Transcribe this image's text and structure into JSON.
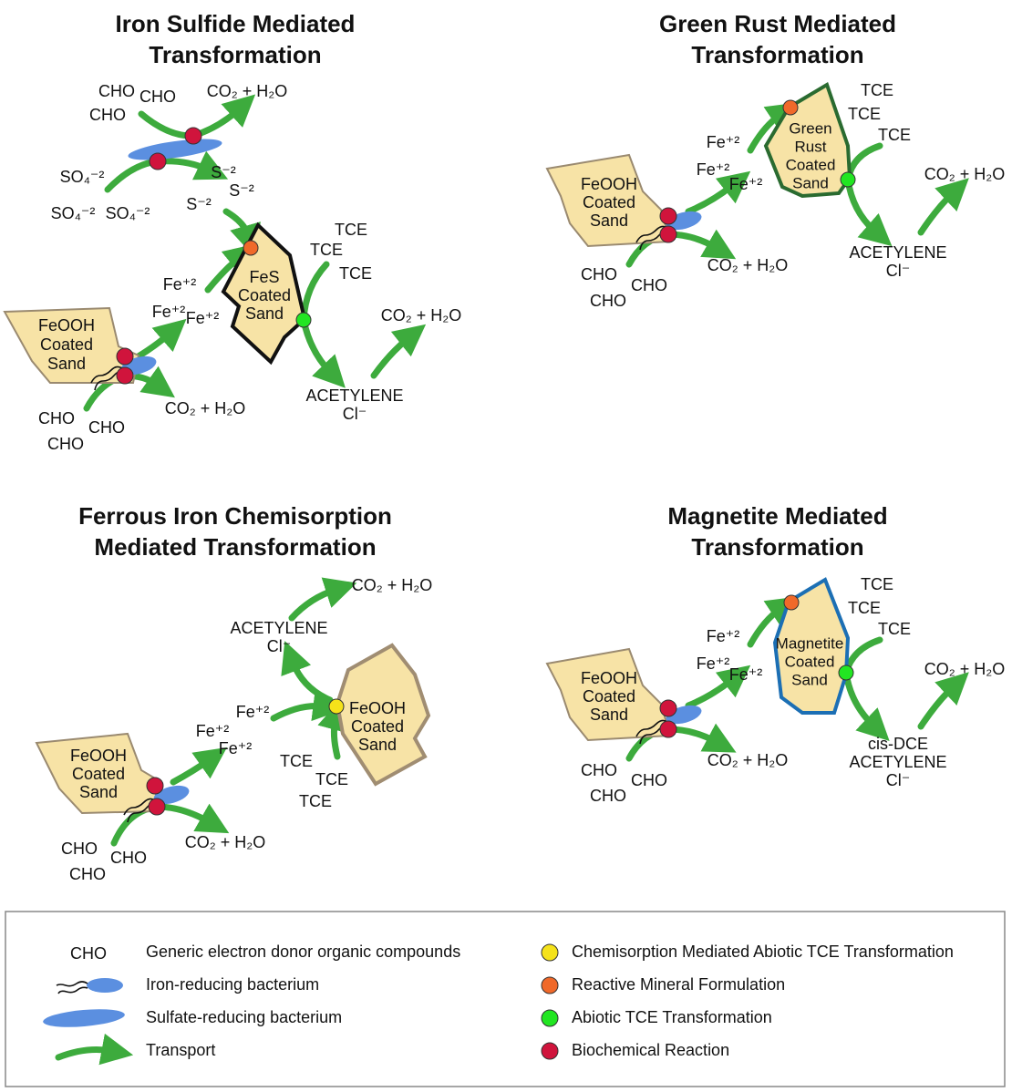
{
  "panels": [
    {
      "title": [
        "Iron Sulfide Mediated",
        "Transformation"
      ],
      "top_donors": [
        "CHO",
        "CHO",
        "CHO"
      ],
      "top_products": "CO₂ + H₂O",
      "sulfates": [
        "SO₄⁻²",
        "SO₄⁻²",
        "SO₄⁻²"
      ],
      "sulfides": [
        "S⁻²",
        "S⁻²",
        "S⁻²"
      ],
      "source": [
        "FeOOH",
        "Coated",
        "Sand"
      ],
      "iron": [
        "Fe⁺²",
        "Fe⁺²",
        "Fe⁺²"
      ],
      "mineral": [
        "FeS",
        "Coated",
        "Sand"
      ],
      "tce": [
        "TCE",
        "TCE",
        "TCE"
      ],
      "end_products": [
        "ACETYLENE",
        "Cl⁻"
      ],
      "final_products": "CO₂ + H₂O",
      "donors": [
        "CHO",
        "CHO",
        "CHO"
      ],
      "bio_products": "CO₂ + H₂O"
    },
    {
      "title": [
        "Green Rust Mediated",
        "Transformation"
      ],
      "source": [
        "FeOOH",
        "Coated",
        "Sand"
      ],
      "iron": [
        "Fe⁺²",
        "Fe⁺²",
        "Fe⁺²"
      ],
      "mineral": [
        "Green",
        "Rust",
        "Coated",
        "Sand"
      ],
      "tce": [
        "TCE",
        "TCE",
        "TCE"
      ],
      "end_products": [
        "ACETYLENE",
        "Cl⁻"
      ],
      "final_products": "CO₂ + H₂O",
      "donors": [
        "CHO",
        "CHO",
        "CHO"
      ],
      "bio_products": "CO₂ + H₂O"
    },
    {
      "title": [
        "Ferrous Iron Chemisorption",
        "Mediated Transformation"
      ],
      "source": [
        "FeOOH",
        "Coated",
        "Sand"
      ],
      "iron": [
        "Fe⁺²",
        "Fe⁺²",
        "Fe⁺²"
      ],
      "mineral": [
        "FeOOH",
        "Coated",
        "Sand"
      ],
      "tce": [
        "TCE",
        "TCE",
        "TCE"
      ],
      "end_products": [
        "ACETYLENE",
        "Cl⁻"
      ],
      "final_products": "CO₂ + H₂O",
      "donors": [
        "CHO",
        "CHO",
        "CHO"
      ],
      "bio_products": "CO₂ + H₂O"
    },
    {
      "title": [
        "Magnetite Mediated",
        "Transformation"
      ],
      "source": [
        "FeOOH",
        "Coated",
        "Sand"
      ],
      "iron": [
        "Fe⁺²",
        "Fe⁺²",
        "Fe⁺²"
      ],
      "mineral": [
        "Magnetite",
        "Coated",
        "Sand"
      ],
      "tce": [
        "TCE",
        "TCE",
        "TCE"
      ],
      "end_products": [
        "cis-DCE",
        "ACETYLENE",
        "Cl⁻"
      ],
      "final_products": "CO₂ + H₂O",
      "donors": [
        "CHO",
        "CHO",
        "CHO"
      ],
      "bio_products": "CO₂ + H₂O"
    }
  ],
  "legend": {
    "symbol": "CHO",
    "left": [
      "Generic electron donor organic compounds",
      "Iron-reducing bacterium",
      "Sulfate-reducing bacterium",
      "Transport"
    ],
    "right": [
      "Chemisorption Mediated Abiotic TCE Transformation",
      "Reactive Mineral Formulation",
      "Abiotic TCE Transformation",
      "Biochemical Reaction"
    ]
  }
}
